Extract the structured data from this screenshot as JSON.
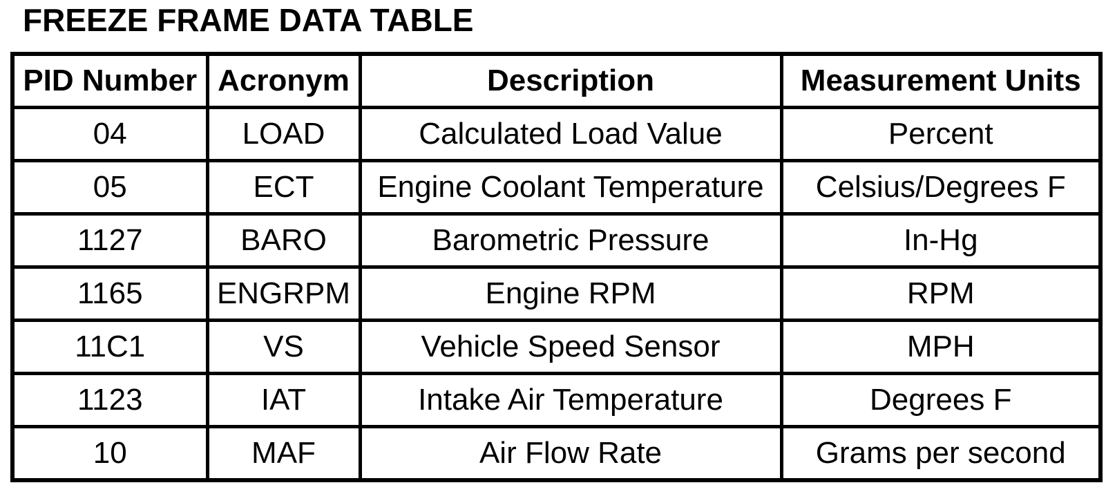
{
  "page": {
    "title": "FREEZE FRAME DATA TABLE"
  },
  "table": {
    "columns": [
      "PID Number",
      "Acronym",
      "Description",
      "Measurement Units"
    ],
    "rows": [
      [
        "04",
        "LOAD",
        "Calculated Load Value",
        "Percent"
      ],
      [
        "05",
        "ECT",
        "Engine Coolant Temperature",
        "Celsius/Degrees F"
      ],
      [
        "1127",
        "BARO",
        "Barometric Pressure",
        "In-Hg"
      ],
      [
        "1165",
        "ENGRPM",
        "Engine RPM",
        "RPM"
      ],
      [
        "11C1",
        "VS",
        "Vehicle Speed Sensor",
        "MPH"
      ],
      [
        "1123",
        "IAT",
        "Intake Air Temperature",
        "Degrees F"
      ],
      [
        "10",
        "MAF",
        "Air Flow Rate",
        "Grams per second"
      ]
    ]
  },
  "colors": {
    "text": "#000000",
    "border": "#000000",
    "background": "#ffffff"
  }
}
